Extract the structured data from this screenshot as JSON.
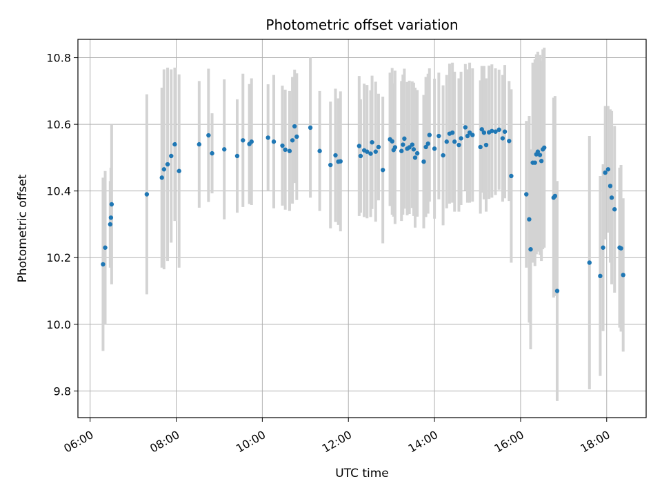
{
  "chart_data": {
    "type": "scatter",
    "title": "Photometric offset variation",
    "xlabel": "UTC time",
    "ylabel": "Photometric offset",
    "xlim": [
      "05:43",
      "18:55"
    ],
    "ylim": [
      9.72,
      10.855
    ],
    "xticks": [
      "06:00",
      "08:00",
      "10:00",
      "12:00",
      "14:00",
      "16:00",
      "18:00"
    ],
    "yticks": [
      9.8,
      10.0,
      10.2,
      10.4,
      10.6,
      10.8
    ],
    "grid": true,
    "point_color": "#1f77b4",
    "errorbar_color": "#d3d3d3",
    "points": [
      {
        "x": "06:18",
        "y": 10.18,
        "err": 0.26
      },
      {
        "x": "06:21",
        "y": 10.23,
        "err": 0.23
      },
      {
        "x": "06:28",
        "y": 10.3,
        "err": 0.13
      },
      {
        "x": "06:29",
        "y": 10.32,
        "err": 0.15
      },
      {
        "x": "06:30",
        "y": 10.36,
        "err": 0.24
      },
      {
        "x": "07:19",
        "y": 10.39,
        "err": 0.3
      },
      {
        "x": "07:40",
        "y": 10.44,
        "err": 0.27
      },
      {
        "x": "07:43",
        "y": 10.465,
        "err": 0.3
      },
      {
        "x": "07:48",
        "y": 10.48,
        "err": 0.29
      },
      {
        "x": "07:53",
        "y": 10.505,
        "err": 0.26
      },
      {
        "x": "07:58",
        "y": 10.54,
        "err": 0.23
      },
      {
        "x": "08:04",
        "y": 10.46,
        "err": 0.29
      },
      {
        "x": "08:32",
        "y": 10.54,
        "err": 0.19
      },
      {
        "x": "08:45",
        "y": 10.567,
        "err": 0.2
      },
      {
        "x": "08:50",
        "y": 10.513,
        "err": 0.12
      },
      {
        "x": "09:07",
        "y": 10.525,
        "err": 0.21
      },
      {
        "x": "09:25",
        "y": 10.505,
        "err": 0.17
      },
      {
        "x": "09:33",
        "y": 10.552,
        "err": 0.2
      },
      {
        "x": "09:42",
        "y": 10.541,
        "err": 0.18
      },
      {
        "x": "09:45",
        "y": 10.548,
        "err": 0.19
      },
      {
        "x": "10:08",
        "y": 10.56,
        "err": 0.16
      },
      {
        "x": "10:16",
        "y": 10.548,
        "err": 0.2
      },
      {
        "x": "10:28",
        "y": 10.536,
        "err": 0.18
      },
      {
        "x": "10:32",
        "y": 10.524,
        "err": 0.18
      },
      {
        "x": "10:38",
        "y": 10.52,
        "err": 0.18
      },
      {
        "x": "10:42",
        "y": 10.552,
        "err": 0.19
      },
      {
        "x": "10:45",
        "y": 10.594,
        "err": 0.17
      },
      {
        "x": "10:48",
        "y": 10.563,
        "err": 0.19
      },
      {
        "x": "11:07",
        "y": 10.59,
        "err": 0.21
      },
      {
        "x": "11:20",
        "y": 10.52,
        "err": 0.18
      },
      {
        "x": "11:35",
        "y": 10.478,
        "err": 0.19
      },
      {
        "x": "11:42",
        "y": 10.507,
        "err": 0.2
      },
      {
        "x": "11:46",
        "y": 10.488,
        "err": 0.19
      },
      {
        "x": "11:49",
        "y": 10.489,
        "err": 0.21
      },
      {
        "x": "12:15",
        "y": 10.535,
        "err": 0.21
      },
      {
        "x": "12:17",
        "y": 10.505,
        "err": 0.17
      },
      {
        "x": "12:22",
        "y": 10.522,
        "err": 0.2
      },
      {
        "x": "12:26",
        "y": 10.518,
        "err": 0.2
      },
      {
        "x": "12:31",
        "y": 10.512,
        "err": 0.19
      },
      {
        "x": "12:33",
        "y": 10.546,
        "err": 0.2
      },
      {
        "x": "12:38",
        "y": 10.518,
        "err": 0.21
      },
      {
        "x": "12:42",
        "y": 10.532,
        "err": 0.16
      },
      {
        "x": "12:48",
        "y": 10.463,
        "err": 0.22
      },
      {
        "x": "12:58",
        "y": 10.555,
        "err": 0.2
      },
      {
        "x": "13:01",
        "y": 10.549,
        "err": 0.22
      },
      {
        "x": "13:03",
        "y": 10.523,
        "err": 0.2
      },
      {
        "x": "13:05",
        "y": 10.531,
        "err": 0.23
      },
      {
        "x": "13:14",
        "y": 10.52,
        "err": 0.21
      },
      {
        "x": "13:16",
        "y": 10.539,
        "err": 0.21
      },
      {
        "x": "13:18",
        "y": 10.557,
        "err": 0.21
      },
      {
        "x": "13:22",
        "y": 10.527,
        "err": 0.2
      },
      {
        "x": "13:25",
        "y": 10.531,
        "err": 0.2
      },
      {
        "x": "13:29",
        "y": 10.539,
        "err": 0.19
      },
      {
        "x": "13:31",
        "y": 10.525,
        "err": 0.2
      },
      {
        "x": "13:33",
        "y": 10.5,
        "err": 0.21
      },
      {
        "x": "13:36",
        "y": 10.513,
        "err": 0.19
      },
      {
        "x": "13:45",
        "y": 10.488,
        "err": 0.2
      },
      {
        "x": "13:48",
        "y": 10.532,
        "err": 0.21
      },
      {
        "x": "13:51",
        "y": 10.542,
        "err": 0.21
      },
      {
        "x": "13:53",
        "y": 10.568,
        "err": 0.2
      },
      {
        "x": "14:00",
        "y": 10.527,
        "err": 0.21
      },
      {
        "x": "14:06",
        "y": 10.565,
        "err": 0.19
      },
      {
        "x": "14:12",
        "y": 10.507,
        "err": 0.21
      },
      {
        "x": "14:17",
        "y": 10.548,
        "err": 0.2
      },
      {
        "x": "14:21",
        "y": 10.572,
        "err": 0.21
      },
      {
        "x": "14:25",
        "y": 10.575,
        "err": 0.21
      },
      {
        "x": "14:28",
        "y": 10.548,
        "err": 0.21
      },
      {
        "x": "14:34",
        "y": 10.538,
        "err": 0.2
      },
      {
        "x": "14:37",
        "y": 10.558,
        "err": 0.2
      },
      {
        "x": "14:43",
        "y": 10.591,
        "err": 0.19
      },
      {
        "x": "14:46",
        "y": 10.565,
        "err": 0.2
      },
      {
        "x": "14:49",
        "y": 10.575,
        "err": 0.21
      },
      {
        "x": "14:53",
        "y": 10.568,
        "err": 0.2
      },
      {
        "x": "15:04",
        "y": 10.532,
        "err": 0.2
      },
      {
        "x": "15:06",
        "y": 10.585,
        "err": 0.19
      },
      {
        "x": "15:09",
        "y": 10.575,
        "err": 0.2
      },
      {
        "x": "15:12",
        "y": 10.538,
        "err": 0.2
      },
      {
        "x": "15:16",
        "y": 10.576,
        "err": 0.2
      },
      {
        "x": "15:20",
        "y": 10.58,
        "err": 0.2
      },
      {
        "x": "15:25",
        "y": 10.578,
        "err": 0.19
      },
      {
        "x": "15:30",
        "y": 10.584,
        "err": 0.18
      },
      {
        "x": "15:35",
        "y": 10.558,
        "err": 0.19
      },
      {
        "x": "15:38",
        "y": 10.578,
        "err": 0.2
      },
      {
        "x": "15:44",
        "y": 10.55,
        "err": 0.18
      },
      {
        "x": "15:47",
        "y": 10.445,
        "err": 0.26
      },
      {
        "x": "16:08",
        "y": 10.39,
        "err": 0.22
      },
      {
        "x": "16:12",
        "y": 10.315,
        "err": 0.31
      },
      {
        "x": "16:14",
        "y": 10.225,
        "err": 0.3
      },
      {
        "x": "16:17",
        "y": 10.485,
        "err": 0.3
      },
      {
        "x": "16:20",
        "y": 10.485,
        "err": 0.31
      },
      {
        "x": "16:22",
        "y": 10.51,
        "err": 0.3
      },
      {
        "x": "16:24",
        "y": 10.518,
        "err": 0.3
      },
      {
        "x": "16:27",
        "y": 10.508,
        "err": 0.3
      },
      {
        "x": "16:29",
        "y": 10.49,
        "err": 0.3
      },
      {
        "x": "16:31",
        "y": 10.525,
        "err": 0.3
      },
      {
        "x": "16:33",
        "y": 10.53,
        "err": 0.3
      },
      {
        "x": "16:46",
        "y": 10.38,
        "err": 0.3
      },
      {
        "x": "16:48",
        "y": 10.385,
        "err": 0.3
      },
      {
        "x": "16:51",
        "y": 10.1,
        "err": 0.33
      },
      {
        "x": "17:36",
        "y": 10.185,
        "err": 0.38
      },
      {
        "x": "17:51",
        "y": 10.145,
        "err": 0.3
      },
      {
        "x": "17:55",
        "y": 10.23,
        "err": 0.25
      },
      {
        "x": "17:58",
        "y": 10.455,
        "err": 0.2
      },
      {
        "x": "18:02",
        "y": 10.465,
        "err": 0.19
      },
      {
        "x": "18:05",
        "y": 10.415,
        "err": 0.23
      },
      {
        "x": "18:07",
        "y": 10.38,
        "err": 0.26
      },
      {
        "x": "18:11",
        "y": 10.345,
        "err": 0.25
      },
      {
        "x": "18:18",
        "y": 10.23,
        "err": 0.24
      },
      {
        "x": "18:20",
        "y": 10.228,
        "err": 0.25
      },
      {
        "x": "18:23",
        "y": 10.148,
        "err": 0.23
      }
    ]
  }
}
